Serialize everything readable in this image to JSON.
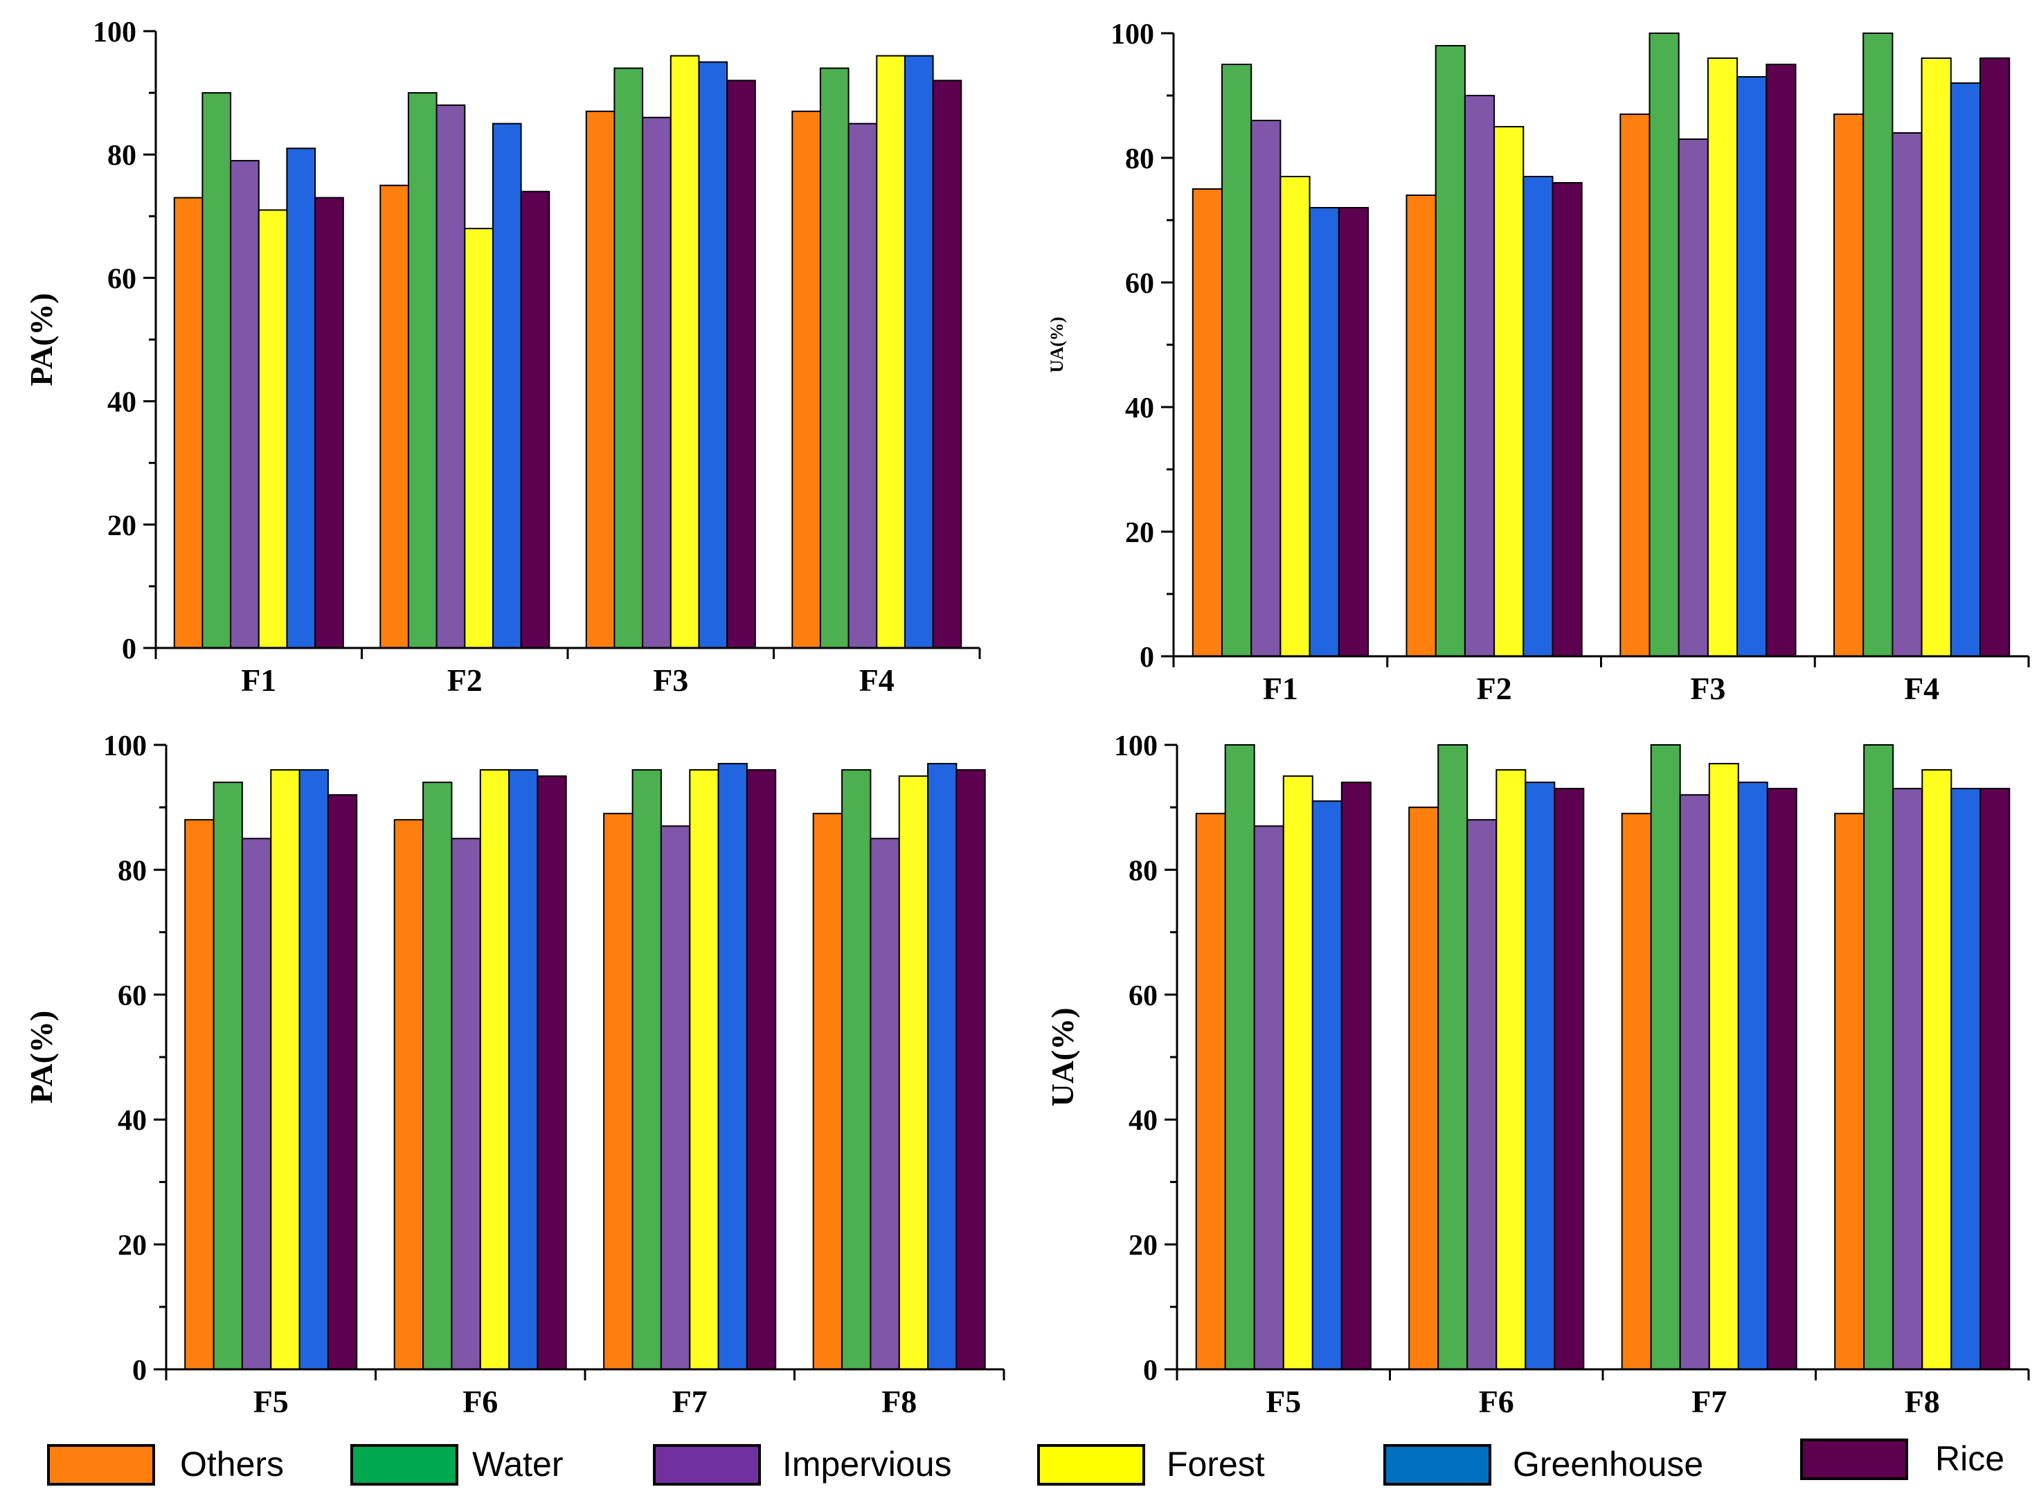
{
  "series_styles": [
    {
      "name": "Others",
      "color": "#ff7f0e"
    },
    {
      "name": "Water",
      "color": "#4caf50"
    },
    {
      "name": "Impervious",
      "color": "#7f56a8"
    },
    {
      "name": "Forest",
      "color": "#ffff20"
    },
    {
      "name": "Greenhouse",
      "color": "#2166e0"
    },
    {
      "name": "Rice",
      "color": "#5e0050"
    }
  ],
  "legend": {
    "items": [
      {
        "label": "Others",
        "color": "#ff7f0e"
      },
      {
        "label": "Water",
        "color": "#00a850"
      },
      {
        "label": "Impervious",
        "color": "#7030a0"
      },
      {
        "label": "Forest",
        "color": "#ffff00"
      },
      {
        "label": "Greenhouse",
        "color": "#0070c0"
      },
      {
        "label": "Rice",
        "color": "#5e0050"
      }
    ]
  },
  "chart_data": [
    {
      "type": "bar",
      "ylabel": "PA(%)",
      "ylim": [
        0,
        100
      ],
      "yticks": [
        "0",
        "20",
        "40",
        "60",
        "80",
        "100"
      ],
      "categories": [
        "F1",
        "F2",
        "F3",
        "F4"
      ],
      "series": [
        {
          "name": "Others",
          "values": [
            73,
            75,
            87,
            87
          ]
        },
        {
          "name": "Water",
          "values": [
            90,
            90,
            94,
            94
          ]
        },
        {
          "name": "Impervious",
          "values": [
            79,
            88,
            86,
            85
          ]
        },
        {
          "name": "Forest",
          "values": [
            71,
            68,
            96,
            96
          ]
        },
        {
          "name": "Greenhouse",
          "values": [
            81,
            85,
            95,
            96
          ]
        },
        {
          "name": "Rice",
          "values": [
            73,
            74,
            92,
            92
          ]
        }
      ]
    },
    {
      "type": "bar",
      "ylabel": "UA(%)",
      "ylim": [
        0,
        100
      ],
      "yticks": [
        "0",
        "20",
        "40",
        "60",
        "80",
        "100"
      ],
      "categories": [
        "F1",
        "F2",
        "F3",
        "F4"
      ],
      "series": [
        {
          "name": "Others",
          "values": [
            75,
            74,
            87,
            87
          ]
        },
        {
          "name": "Water",
          "values": [
            95,
            98,
            100,
            100
          ]
        },
        {
          "name": "Impervious",
          "values": [
            86,
            90,
            83,
            84
          ]
        },
        {
          "name": "Forest",
          "values": [
            77,
            85,
            96,
            96
          ]
        },
        {
          "name": "Greenhouse",
          "values": [
            72,
            77,
            93,
            92
          ]
        },
        {
          "name": "Rice",
          "values": [
            72,
            76,
            95,
            96
          ]
        }
      ]
    },
    {
      "type": "bar",
      "ylabel": "PA(%)",
      "ylim": [
        0,
        100
      ],
      "yticks": [
        "0",
        "20",
        "40",
        "60",
        "80",
        "100"
      ],
      "categories": [
        "F5",
        "F6",
        "F7",
        "F8"
      ],
      "series": [
        {
          "name": "Others",
          "values": [
            88,
            88,
            89,
            89
          ]
        },
        {
          "name": "Water",
          "values": [
            94,
            94,
            96,
            96
          ]
        },
        {
          "name": "Impervious",
          "values": [
            85,
            85,
            87,
            85
          ]
        },
        {
          "name": "Forest",
          "values": [
            96,
            96,
            96,
            95
          ]
        },
        {
          "name": "Greenhouse",
          "values": [
            96,
            96,
            97,
            97
          ]
        },
        {
          "name": "Rice",
          "values": [
            92,
            95,
            96,
            96
          ]
        }
      ]
    },
    {
      "type": "bar",
      "ylabel": "UA(%)",
      "ylim": [
        0,
        100
      ],
      "yticks": [
        "0",
        "20",
        "40",
        "60",
        "80",
        "100"
      ],
      "categories": [
        "F5",
        "F6",
        "F7",
        "F8"
      ],
      "series": [
        {
          "name": "Others",
          "values": [
            89,
            90,
            89,
            89
          ]
        },
        {
          "name": "Water",
          "values": [
            100,
            100,
            100,
            100
          ]
        },
        {
          "name": "Impervious",
          "values": [
            87,
            88,
            92,
            93
          ]
        },
        {
          "name": "Forest",
          "values": [
            95,
            96,
            97,
            96
          ]
        },
        {
          "name": "Greenhouse",
          "values": [
            91,
            94,
            94,
            93
          ]
        },
        {
          "name": "Rice",
          "values": [
            94,
            93,
            93,
            93
          ]
        }
      ]
    }
  ]
}
